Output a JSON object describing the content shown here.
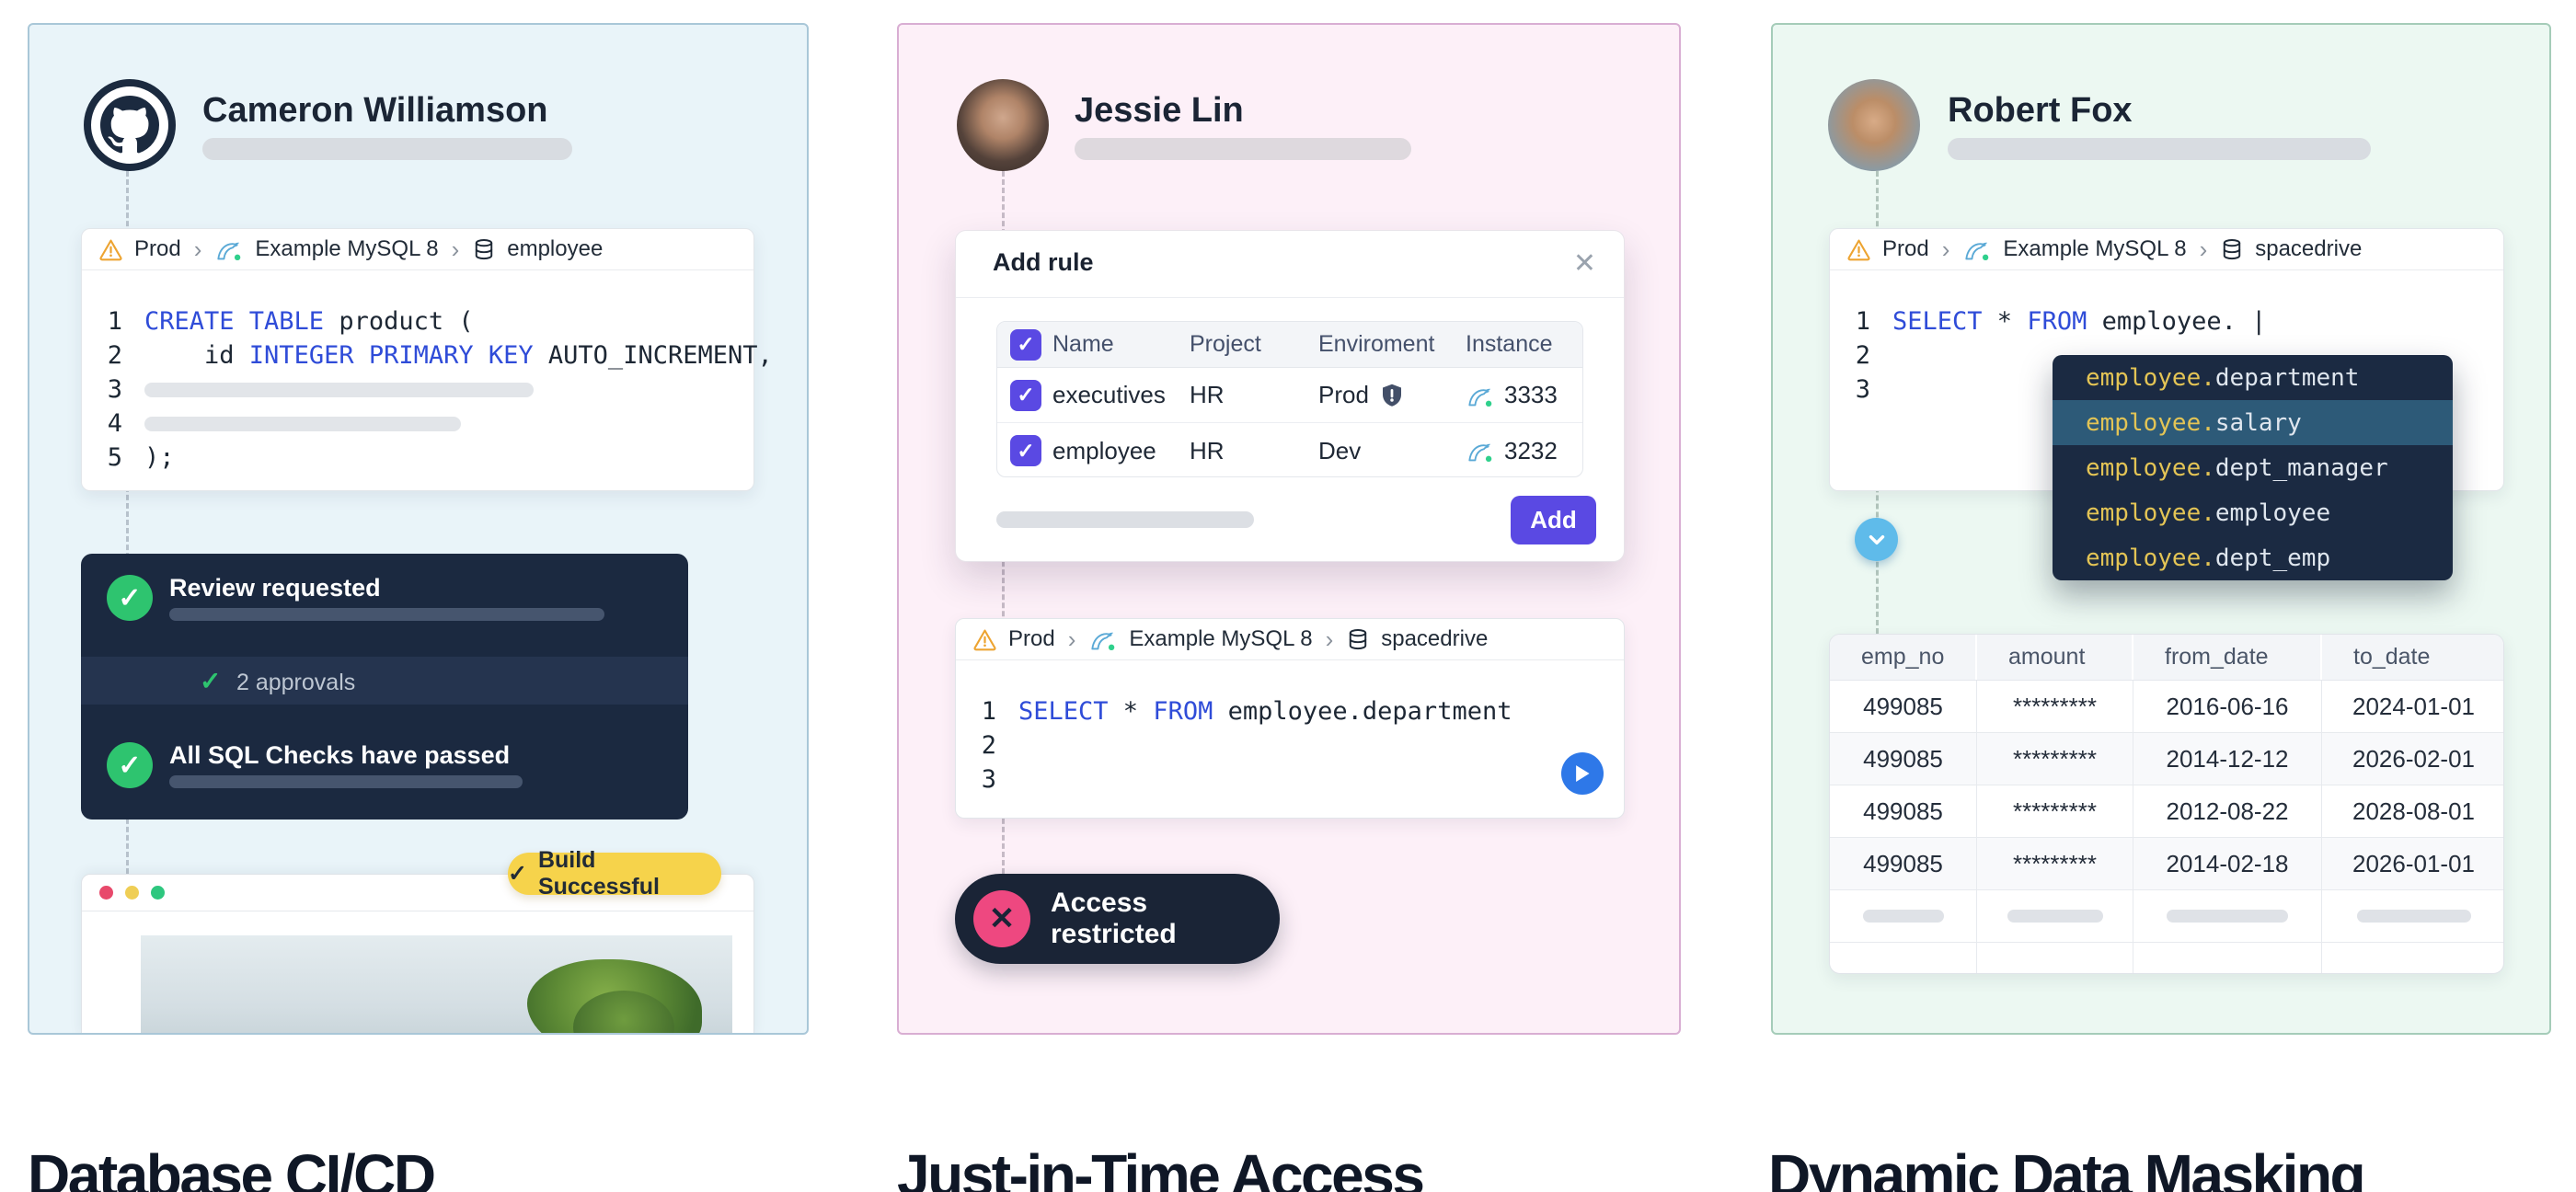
{
  "icons": {
    "check": "✓",
    "close": "✕",
    "cross": "✕",
    "chevron_right": "›",
    "warning": "warning-triangle",
    "mysql": "mysql-dolphin",
    "database": "database-cylinder",
    "play": "play-triangle",
    "chevron_down": "chevron-down"
  },
  "panel1": {
    "title": "Database CI/CD",
    "user": "Cameron Williamson",
    "breadcrumb": {
      "env": "Prod",
      "instance": "Example MySQL 8",
      "db": "employee"
    },
    "code": [
      {
        "n": "1",
        "tokens": [
          {
            "c": "kw",
            "t": "CREATE TABLE"
          },
          {
            "c": "pl",
            "t": " product ("
          }
        ]
      },
      {
        "n": "2",
        "tokens": [
          {
            "c": "pl",
            "t": "    id "
          },
          {
            "c": "kw",
            "t": "INTEGER PRIMARY KEY"
          },
          {
            "c": "pl",
            "t": " AUTO_INCREMENT,"
          }
        ]
      },
      {
        "n": "3",
        "bar": 423
      },
      {
        "n": "4",
        "bar": 344
      },
      {
        "n": "5",
        "tokens": [
          {
            "c": "pl",
            "t": ");"
          }
        ]
      }
    ],
    "review": {
      "step1": "Review requested",
      "approvals": "2 approvals",
      "step2": "All SQL Checks have passed"
    },
    "build_badge": "Build Successful"
  },
  "panel2": {
    "title": "Just-in-Time Access",
    "user": "Jessie Lin",
    "dialog": {
      "title": "Add rule",
      "headers": [
        "Name",
        "Project",
        "Enviroment",
        "Instance"
      ],
      "rows": [
        {
          "name": "executives",
          "project": "HR",
          "env": "Prod",
          "shield": true,
          "instance": "3333"
        },
        {
          "name": "employee",
          "project": "HR",
          "env": "Dev",
          "shield": false,
          "instance": "3232"
        }
      ],
      "add_label": "Add"
    },
    "editor": {
      "breadcrumb": {
        "env": "Prod",
        "instance": "Example MySQL 8",
        "db": "spacedrive"
      },
      "code": [
        {
          "n": "1",
          "tokens": [
            {
              "c": "kw",
              "t": "SELECT"
            },
            {
              "c": "pl",
              "t": " * "
            },
            {
              "c": "kw",
              "t": "FROM"
            },
            {
              "c": "pl",
              "t": " employee.department"
            }
          ]
        },
        {
          "n": "2",
          "tokens": []
        },
        {
          "n": "3",
          "tokens": []
        }
      ]
    },
    "status": "Access restricted"
  },
  "panel3": {
    "title": "Dynamic Data Masking",
    "user": "Robert Fox",
    "editor": {
      "breadcrumb": {
        "env": "Prod",
        "instance": "Example MySQL 8",
        "db": "spacedrive"
      },
      "code": [
        {
          "n": "1",
          "tokens": [
            {
              "c": "kw",
              "t": "SELECT"
            },
            {
              "c": "pl",
              "t": " * "
            },
            {
              "c": "kw",
              "t": "FROM"
            },
            {
              "c": "pl",
              "t": " employee. "
            },
            {
              "c": "cursor",
              "t": "|"
            }
          ]
        },
        {
          "n": "2",
          "tokens": []
        },
        {
          "n": "3",
          "tokens": []
        }
      ]
    },
    "autocomplete": {
      "prefix": "employee.",
      "items": [
        "department",
        "salary",
        "dept_manager",
        "employee",
        "dept_emp"
      ],
      "selected_index": 1
    },
    "table": {
      "headers": [
        "emp_no",
        "amount",
        "from_date",
        "to_date"
      ],
      "rows": [
        [
          "499085",
          "*********",
          "2016-06-16",
          "2024-01-01"
        ],
        [
          "499085",
          "*********",
          "2014-12-12",
          "2026-02-01"
        ],
        [
          "499085",
          "*********",
          "2012-08-22",
          "2028-08-01"
        ],
        [
          "499085",
          "*********",
          "2014-02-18",
          "2026-01-01"
        ]
      ]
    }
  },
  "colors": {
    "accent_indigo": "#5a49e3",
    "keyword_blue": "#2f4cd8",
    "success_green": "#2ec46f",
    "warning_yellow": "#f6d34b",
    "danger_pink": "#ee4880",
    "navy": "#1b2940",
    "autocomplete_highlight": "#2d5a78",
    "mysql_blue": "#5aa9d6",
    "panel1_bg": "#e9f4f9",
    "panel2_bg": "#fdf0f8",
    "panel3_bg": "#ecf8f2"
  }
}
